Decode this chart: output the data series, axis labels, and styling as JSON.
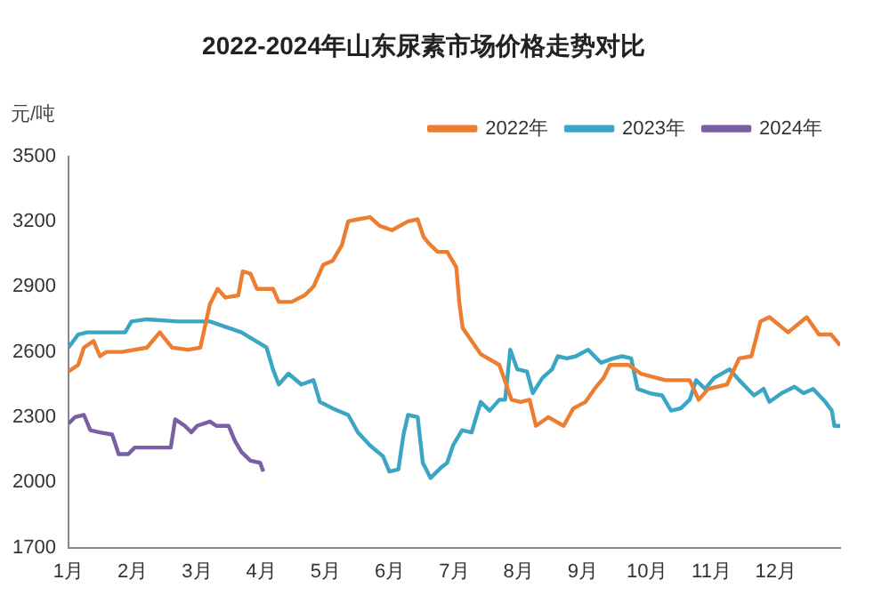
{
  "chart_data": {
    "type": "line",
    "title": "2022-2024年山东尿素市场价格走势对比",
    "ylabel": "元/吨",
    "xlim": [
      1,
      13
    ],
    "xticks": [
      {
        "value": 1,
        "label": "1月"
      },
      {
        "value": 2,
        "label": "2月"
      },
      {
        "value": 3,
        "label": "3月"
      },
      {
        "value": 4,
        "label": "4月"
      },
      {
        "value": 5,
        "label": "5月"
      },
      {
        "value": 6,
        "label": "6月"
      },
      {
        "value": 7,
        "label": "7月"
      },
      {
        "value": 8,
        "label": "8月"
      },
      {
        "value": 9,
        "label": "9月"
      },
      {
        "value": 10,
        "label": "10月"
      },
      {
        "value": 11,
        "label": "11月"
      },
      {
        "value": 12,
        "label": "12月"
      }
    ],
    "ylim": [
      1700,
      3500
    ],
    "yticks": [
      1700,
      2000,
      2300,
      2600,
      2900,
      3200,
      3500
    ],
    "grid": false,
    "legend": "top right",
    "marker": "none",
    "line_style": "solid",
    "series": [
      {
        "name": "2022年",
        "color": "#ed7d31",
        "x": [
          1,
          1.15,
          1.24,
          1.39,
          1.49,
          1.59,
          1.83,
          2.22,
          2.42,
          2.61,
          2.86,
          3.05,
          3.2,
          3.32,
          3.44,
          3.64,
          3.71,
          3.83,
          3.93,
          4.18,
          4.27,
          4.47,
          4.67,
          4.81,
          4.96,
          5.11,
          5.25,
          5.35,
          5.5,
          5.69,
          5.84,
          6.03,
          6.28,
          6.43,
          6.52,
          6.6,
          6.74,
          6.89,
          7.03,
          7.08,
          7.13,
          7.41,
          7.7,
          7.89,
          8.03,
          8.17,
          8.27,
          8.46,
          8.7,
          8.85,
          9.04,
          9.18,
          9.32,
          9.42,
          9.71,
          9.9,
          10.28,
          10.66,
          10.8,
          10.95,
          11.24,
          11.43,
          11.62,
          11.76,
          11.9,
          12.19,
          12.48,
          12.67,
          12.86,
          13
        ],
        "values": [
          2510,
          2540,
          2620,
          2650,
          2580,
          2600,
          2600,
          2620,
          2690,
          2620,
          2610,
          2620,
          2820,
          2890,
          2850,
          2860,
          2970,
          2960,
          2890,
          2890,
          2830,
          2830,
          2860,
          2900,
          3000,
          3020,
          3090,
          3200,
          3210,
          3220,
          3180,
          3160,
          3200,
          3210,
          3130,
          3100,
          3060,
          3060,
          2990,
          2820,
          2710,
          2590,
          2540,
          2380,
          2370,
          2380,
          2260,
          2300,
          2260,
          2340,
          2370,
          2430,
          2480,
          2540,
          2540,
          2500,
          2470,
          2470,
          2380,
          2430,
          2450,
          2570,
          2580,
          2740,
          2760,
          2690,
          2760,
          2680,
          2680,
          2630
        ]
      },
      {
        "name": "2023年",
        "color": "#3aa6c4",
        "x": [
          1,
          1.15,
          1.29,
          1.44,
          1.88,
          1.98,
          2.22,
          2.71,
          3.2,
          3.69,
          4.08,
          4.18,
          4.27,
          4.42,
          4.62,
          4.81,
          4.91,
          5.11,
          5.35,
          5.5,
          5.69,
          5.89,
          5.99,
          6.13,
          6.21,
          6.28,
          6.43,
          6.51,
          6.63,
          6.8,
          6.89,
          6.98,
          7.12,
          7.27,
          7.41,
          7.55,
          7.7,
          7.79,
          7.87,
          7.98,
          8.13,
          8.22,
          8.37,
          8.52,
          8.61,
          8.75,
          8.89,
          9.08,
          9.28,
          9.47,
          9.61,
          9.75,
          9.85,
          10.04,
          10.23,
          10.37,
          10.52,
          10.66,
          10.76,
          10.9,
          11.04,
          11.28,
          11.43,
          11.66,
          11.81,
          11.9,
          12.09,
          12.29,
          12.43,
          12.58,
          12.77,
          12.87,
          12.91,
          13
        ],
        "values": [
          2620,
          2680,
          2690,
          2690,
          2690,
          2740,
          2750,
          2740,
          2740,
          2690,
          2620,
          2520,
          2450,
          2500,
          2450,
          2470,
          2370,
          2340,
          2310,
          2230,
          2170,
          2120,
          2050,
          2060,
          2220,
          2310,
          2300,
          2090,
          2020,
          2070,
          2090,
          2170,
          2240,
          2230,
          2370,
          2330,
          2380,
          2380,
          2610,
          2520,
          2510,
          2410,
          2480,
          2520,
          2580,
          2570,
          2580,
          2610,
          2550,
          2570,
          2580,
          2570,
          2430,
          2410,
          2400,
          2330,
          2340,
          2380,
          2470,
          2430,
          2480,
          2520,
          2470,
          2400,
          2430,
          2370,
          2410,
          2440,
          2410,
          2430,
          2370,
          2330,
          2260,
          2260
        ]
      },
      {
        "name": "2024年",
        "color": "#7a5fa5",
        "x": [
          1,
          1.1,
          1.24,
          1.34,
          1.49,
          1.68,
          1.78,
          1.93,
          2.03,
          2.22,
          2.59,
          2.66,
          2.81,
          2.91,
          3,
          3.2,
          3.3,
          3.49,
          3.59,
          3.69,
          3.83,
          3.98,
          4.03
        ],
        "values": [
          2270,
          2300,
          2310,
          2240,
          2230,
          2220,
          2130,
          2130,
          2160,
          2160,
          2160,
          2290,
          2260,
          2230,
          2260,
          2280,
          2260,
          2260,
          2190,
          2140,
          2100,
          2090,
          2050
        ]
      }
    ]
  }
}
